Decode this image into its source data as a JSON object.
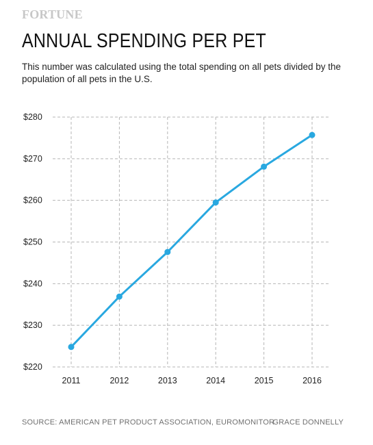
{
  "brand": "FORTUNE",
  "title": "ANNUAL SPENDING PER PET",
  "subtitle": "This number was calculated using the total spending on all pets divided by the population of all pets in the U.S.",
  "source": "SOURCE: AMERICAN PET PRODUCT ASSOCIATION, EUROMONITOR",
  "credit": "GRACE DONNELLY",
  "colors": {
    "line": "#29a8e0",
    "grid": "#b5b5b5"
  },
  "chart_data": {
    "type": "line",
    "x": [
      "2011",
      "2012",
      "2013",
      "2014",
      "2015",
      "2016"
    ],
    "series": [
      {
        "values": [
          224.8,
          236.9,
          247.6,
          259.5,
          268.1,
          275.7
        ]
      }
    ],
    "yticks": [
      "$220",
      "$230",
      "$240",
      "$250",
      "$260",
      "$270",
      "$280"
    ],
    "ylim": [
      220,
      280
    ],
    "grid": true,
    "grid_style": "dashed",
    "markers": true
  }
}
